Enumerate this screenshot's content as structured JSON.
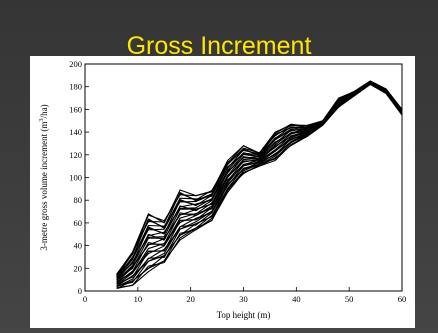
{
  "slide": {
    "title": "Gross Increment",
    "background": "#3a3a3a",
    "title_color": "#ffe600"
  },
  "chart_data": {
    "type": "line",
    "title": "",
    "xlabel": "Top height (m)",
    "ylabel_main": "3-metre gross volume increment (m",
    "ylabel_super": "3",
    "ylabel_tail": "/ha)",
    "xlim": [
      0,
      60
    ],
    "ylim": [
      0,
      200
    ],
    "xticks": [
      0,
      10,
      20,
      30,
      40,
      50,
      60
    ],
    "yticks": [
      0,
      20,
      40,
      60,
      80,
      100,
      120,
      140,
      160,
      180,
      200
    ],
    "grid": false,
    "legend": "none",
    "line_color": "#000000",
    "x": [
      6,
      9,
      12,
      15,
      18,
      21,
      24,
      27,
      30,
      33,
      36,
      39,
      42,
      45,
      48,
      51,
      54,
      57,
      60
    ],
    "envelope": {
      "upper": [
        15,
        35,
        68,
        62,
        89,
        84,
        89,
        115,
        128,
        122,
        140,
        147,
        146,
        150,
        170,
        176,
        185,
        178,
        160
      ],
      "lower": [
        2,
        5,
        17,
        25,
        45,
        53,
        62,
        87,
        103,
        110,
        115,
        128,
        136,
        146,
        162,
        172,
        182,
        174,
        155
      ]
    },
    "series_count": 28
  }
}
